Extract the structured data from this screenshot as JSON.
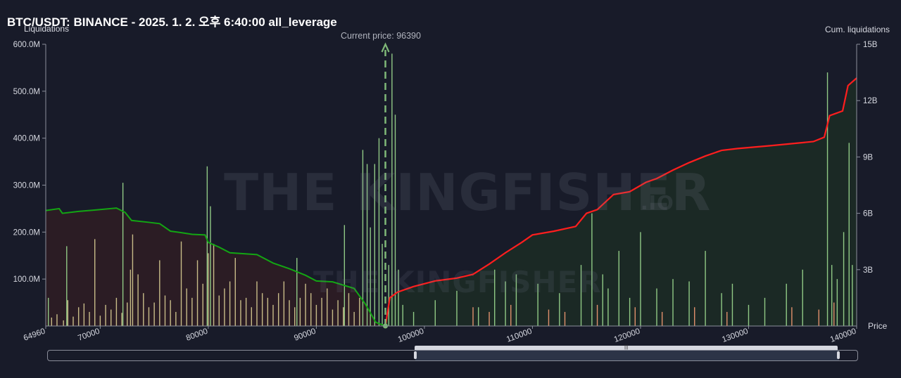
{
  "title": "BTC/USDT: BINANCE - 2025. 1. 2. 오후 6:40:00 all_leverage",
  "current_price_label": "Current price: 96390",
  "watermark": "THE KINGFISHER",
  "watermark_suffix": ".IO",
  "colors": {
    "background": "#181b29",
    "short_cum_line": "#ff1e1e",
    "long_cum_line": "#13a613",
    "short_area": "#1b2a25",
    "long_area": "#2c1c24",
    "bar_green": "#90c985",
    "bar_tan": "#c8bc88",
    "bar_salmon": "#e0906c",
    "current_price_marker": "#7fb878"
  },
  "chart_data": {
    "type": "bar",
    "title": "BTC/USDT: BINANCE - 2025. 1. 2. 오후 6:40:00 all_leverage",
    "xlabel": "Price",
    "ylabel": "Liquidations",
    "y2label": "Cum. liquidations",
    "xlim": [
      64960,
      140000
    ],
    "ylim": [
      0,
      600000000
    ],
    "y2lim": [
      0,
      15000000000
    ],
    "x_ticks": [
      "64960",
      "70000",
      "80000",
      "90000",
      "100000",
      "110000",
      "120000",
      "130000",
      "140000"
    ],
    "y_ticks": [
      "100.0M",
      "200.0M",
      "300.0M",
      "400.0M",
      "500.0M",
      "600.0M"
    ],
    "y2_ticks": [
      "3B",
      "6B",
      "9B",
      "12B",
      "15B"
    ],
    "current_price": 96390,
    "series": [
      {
        "kind": "cumulative_long",
        "axis": "y2",
        "points": [
          [
            64960,
            6150000000.0
          ],
          [
            66200,
            6250000000.0
          ],
          [
            66500,
            6000000000.0
          ],
          [
            68000,
            6100000000.0
          ],
          [
            70000,
            6200000000.0
          ],
          [
            71500,
            6280000000.0
          ],
          [
            72300,
            6050000000.0
          ],
          [
            72900,
            5620000000.0
          ],
          [
            74500,
            5520000000.0
          ],
          [
            75500,
            5450000000.0
          ],
          [
            76500,
            5050000000.0
          ],
          [
            77500,
            4970000000.0
          ],
          [
            78500,
            4880000000.0
          ],
          [
            79700,
            4850000000.0
          ],
          [
            80000,
            4450000000.0
          ],
          [
            81000,
            4200000000.0
          ],
          [
            82000,
            3900000000.0
          ],
          [
            84500,
            3800000000.0
          ],
          [
            86000,
            3350000000.0
          ],
          [
            87500,
            3050000000.0
          ],
          [
            89000,
            2700000000.0
          ],
          [
            90000,
            2400000000.0
          ],
          [
            91500,
            2350000000.0
          ],
          [
            93500,
            2000000000.0
          ],
          [
            94500,
            1200000000.0
          ],
          [
            95500,
            200000000.0
          ],
          [
            96390,
            0.0
          ]
        ]
      },
      {
        "kind": "cumulative_short",
        "axis": "y2",
        "points": [
          [
            96390,
            0.0
          ],
          [
            96800,
            1500000000.0
          ],
          [
            97500,
            1800000000.0
          ],
          [
            99000,
            2100000000.0
          ],
          [
            101000,
            2400000000.0
          ],
          [
            103000,
            2550000000.0
          ],
          [
            104500,
            2750000000.0
          ],
          [
            106000,
            3300000000.0
          ],
          [
            107500,
            3900000000.0
          ],
          [
            109000,
            4450000000.0
          ],
          [
            110000,
            4850000000.0
          ],
          [
            112000,
            5050000000.0
          ],
          [
            114000,
            5300000000.0
          ],
          [
            115000,
            6000000000.0
          ],
          [
            116000,
            6200000000.0
          ],
          [
            117500,
            7000000000.0
          ],
          [
            119000,
            7150000000.0
          ],
          [
            120500,
            7650000000.0
          ],
          [
            121500,
            7850000000.0
          ],
          [
            123000,
            8300000000.0
          ],
          [
            124500,
            8700000000.0
          ],
          [
            126000,
            9050000000.0
          ],
          [
            127500,
            9350000000.0
          ],
          [
            129000,
            9450000000.0
          ],
          [
            132000,
            9600000000.0
          ],
          [
            136000,
            9820000000.0
          ],
          [
            137000,
            10050000000.0
          ],
          [
            137500,
            11200000000.0
          ],
          [
            138700,
            11450000000.0
          ],
          [
            139200,
            12800000000.0
          ],
          [
            140000,
            13200000000.0
          ]
        ]
      },
      {
        "kind": "liquidation_bars",
        "axis": "y",
        "color_key": "bar_tan",
        "points": [
          [
            65500,
            18000000.0
          ],
          [
            66000,
            25000000.0
          ],
          [
            66600,
            12000000.0
          ],
          [
            67000,
            55000000.0
          ],
          [
            67500,
            20000000.0
          ],
          [
            68000,
            40000000.0
          ],
          [
            68500,
            48000000.0
          ],
          [
            69000,
            30000000.0
          ],
          [
            69500,
            185000000.0
          ],
          [
            70000,
            22000000.0
          ],
          [
            70500,
            45000000.0
          ],
          [
            71000,
            35000000.0
          ],
          [
            71500,
            60000000.0
          ],
          [
            72000,
            28000000.0
          ],
          [
            72500,
            50000000.0
          ],
          [
            72800,
            120000000.0
          ],
          [
            73000,
            195000000.0
          ],
          [
            73500,
            110000000.0
          ],
          [
            74000,
            70000000.0
          ],
          [
            74500,
            40000000.0
          ],
          [
            75000,
            50000000.0
          ],
          [
            75500,
            140000000.0
          ],
          [
            76000,
            65000000.0
          ],
          [
            76500,
            55000000.0
          ],
          [
            77000,
            30000000.0
          ],
          [
            77500,
            180000000.0
          ],
          [
            78000,
            80000000.0
          ],
          [
            78500,
            60000000.0
          ],
          [
            79000,
            140000000.0
          ],
          [
            79500,
            90000000.0
          ],
          [
            80000,
            155000000.0
          ],
          [
            80500,
            175000000.0
          ],
          [
            81000,
            65000000.0
          ],
          [
            81500,
            80000000.0
          ],
          [
            82000,
            95000000.0
          ],
          [
            82500,
            145000000.0
          ],
          [
            83000,
            55000000.0
          ],
          [
            83500,
            60000000.0
          ],
          [
            84000,
            40000000.0
          ],
          [
            84500,
            95000000.0
          ],
          [
            85000,
            70000000.0
          ],
          [
            85500,
            60000000.0
          ],
          [
            86000,
            45000000.0
          ],
          [
            86500,
            70000000.0
          ],
          [
            87000,
            95000000.0
          ],
          [
            87500,
            55000000.0
          ],
          [
            88000,
            40000000.0
          ],
          [
            88500,
            60000000.0
          ],
          [
            89000,
            90000000.0
          ],
          [
            89500,
            70000000.0
          ],
          [
            90000,
            45000000.0
          ],
          [
            90500,
            60000000.0
          ],
          [
            91000,
            80000000.0
          ],
          [
            91500,
            35000000.0
          ],
          [
            92000,
            55000000.0
          ],
          [
            92500,
            40000000.0
          ],
          [
            93000,
            70000000.0
          ],
          [
            93500,
            30000000.0
          ],
          [
            94000,
            60000000.0
          ]
        ]
      },
      {
        "kind": "liquidation_bars",
        "axis": "y",
        "color_key": "bar_green",
        "points": [
          [
            65200,
            60000000.0
          ],
          [
            66900,
            170000000.0
          ],
          [
            72100,
            305000000.0
          ],
          [
            79900,
            340000000.0
          ],
          [
            80200,
            255000000.0
          ],
          [
            88200,
            145000000.0
          ],
          [
            92600,
            215000000.0
          ],
          [
            94300,
            375000000.0
          ],
          [
            94700,
            345000000.0
          ],
          [
            95000,
            210000000.0
          ],
          [
            95400,
            345000000.0
          ],
          [
            95800,
            400000000.0
          ],
          [
            96100,
            175000000.0
          ],
          [
            96700,
            130000000.0
          ],
          [
            97000,
            580000000.0
          ],
          [
            97300,
            450000000.0
          ],
          [
            97600,
            120000000.0
          ],
          [
            98000,
            45000000.0
          ],
          [
            99000,
            30000000.0
          ],
          [
            101000,
            55000000.0
          ],
          [
            103000,
            75000000.0
          ],
          [
            105000,
            40000000.0
          ],
          [
            106500,
            120000000.0
          ],
          [
            107500,
            95000000.0
          ],
          [
            108500,
            110000000.0
          ],
          [
            110500,
            90000000.0
          ],
          [
            112500,
            70000000.0
          ],
          [
            114500,
            130000000.0
          ],
          [
            115500,
            240000000.0
          ],
          [
            116500,
            110000000.0
          ],
          [
            117000,
            80000000.0
          ],
          [
            118000,
            160000000.0
          ],
          [
            119000,
            60000000.0
          ],
          [
            120000,
            200000000.0
          ],
          [
            121500,
            80000000.0
          ],
          [
            123000,
            100000000.0
          ],
          [
            124500,
            95000000.0
          ],
          [
            126000,
            160000000.0
          ],
          [
            127500,
            70000000.0
          ],
          [
            128500,
            90000000.0
          ],
          [
            130000,
            45000000.0
          ],
          [
            131500,
            60000000.0
          ],
          [
            133500,
            90000000.0
          ],
          [
            135000,
            120000000.0
          ],
          [
            137300,
            540000000.0
          ],
          [
            137700,
            130000000.0
          ],
          [
            138200,
            100000000.0
          ],
          [
            138800,
            200000000.0
          ],
          [
            139300,
            390000000.0
          ],
          [
            139600,
            130000000.0
          ]
        ]
      },
      {
        "kind": "liquidation_bars",
        "axis": "y",
        "color_key": "bar_salmon",
        "points": [
          [
            104500,
            40000000.0
          ],
          [
            106000,
            30000000.0
          ],
          [
            108000,
            45000000.0
          ],
          [
            111500,
            35000000.0
          ],
          [
            113000,
            30000000.0
          ],
          [
            116000,
            45000000.0
          ],
          [
            119500,
            40000000.0
          ],
          [
            122000,
            30000000.0
          ],
          [
            125000,
            40000000.0
          ],
          [
            128000,
            30000000.0
          ],
          [
            134000,
            40000000.0
          ],
          [
            136500,
            35000000.0
          ],
          [
            137900,
            50000000.0
          ]
        ]
      }
    ]
  }
}
